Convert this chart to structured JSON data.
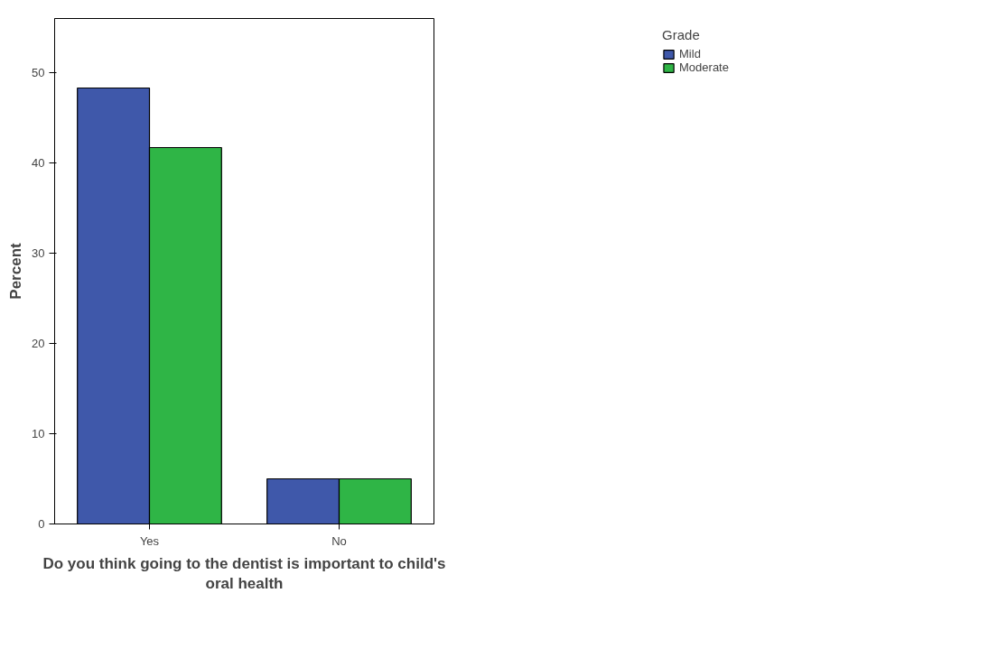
{
  "chart_data": {
    "type": "bar",
    "xlabel": "Do you think going to the dentist is important to child's\noral health",
    "ylabel": "Percent",
    "legend_title": "Grade",
    "categories": [
      "Yes",
      "No"
    ],
    "series": [
      {
        "name": "Mild",
        "color": "#3f58aa",
        "values": [
          48.3,
          5
        ]
      },
      {
        "name": "Moderate",
        "color": "#2fb546",
        "values": [
          41.7,
          5
        ]
      }
    ],
    "ylim": [
      0,
      56
    ],
    "yticks": [
      0,
      10,
      20,
      30,
      40,
      50
    ],
    "grid": false,
    "legend": "top right"
  }
}
